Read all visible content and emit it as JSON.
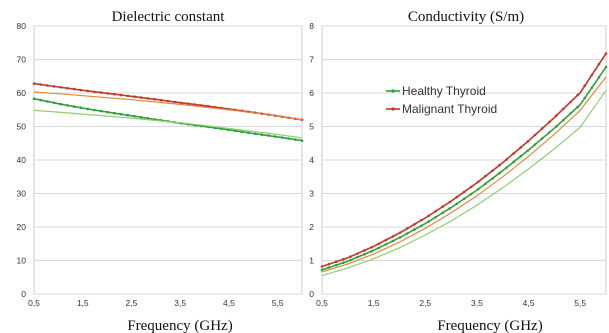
{
  "chart_data": [
    {
      "type": "line",
      "title": "Dielectric constant",
      "xlabel": "Frequency (GHz)",
      "ylabel": "",
      "xlim": [
        0.5,
        6.0
      ],
      "ylim": [
        0,
        80
      ],
      "x_ticks": [
        "0,5",
        "1,5",
        "2,5",
        "3,5",
        "4,5",
        "5,5"
      ],
      "y_ticks": [
        "0",
        "10",
        "20",
        "30",
        "40",
        "50",
        "60",
        "70",
        "80"
      ],
      "grid": "horizontal",
      "x": [
        0.5,
        1.0,
        1.5,
        2.0,
        2.5,
        3.0,
        3.5,
        4.0,
        4.5,
        5.0,
        5.5,
        6.0
      ],
      "series": [
        {
          "color": "#2e9e3f",
          "marker": "dot",
          "values": [
            58.3,
            56.8,
            55.5,
            54.3,
            53.2,
            52.1,
            51.0,
            50.0,
            49.0,
            47.9,
            46.9,
            45.8
          ]
        },
        {
          "color": "#8fcf70",
          "marker": "none",
          "values": [
            54.8,
            54.3,
            53.7,
            53.1,
            52.5,
            51.8,
            51.1,
            50.3,
            49.4,
            48.5,
            47.6,
            46.6
          ]
        },
        {
          "color": "#c0392b",
          "marker": "dot",
          "values": [
            62.8,
            61.8,
            60.8,
            59.9,
            59.0,
            58.1,
            57.1,
            56.2,
            55.2,
            54.2,
            53.1,
            52.0
          ]
        },
        {
          "color": "#e08a3c",
          "marker": "none",
          "values": [
            60.3,
            59.8,
            59.2,
            58.6,
            58.0,
            57.3,
            56.6,
            55.8,
            55.0,
            54.1,
            53.1,
            52.0
          ]
        }
      ]
    },
    {
      "type": "line",
      "title": "Conductivity (S/m)",
      "xlabel": "Frequency (GHz)",
      "ylabel": "",
      "xlim": [
        0.5,
        6.0
      ],
      "ylim": [
        0,
        8
      ],
      "x_ticks": [
        "0,5",
        "1,5",
        "2,5",
        "3,5",
        "4,5",
        "5,5"
      ],
      "y_ticks": [
        "0",
        "1",
        "2",
        "3",
        "4",
        "5",
        "6",
        "7",
        "8"
      ],
      "grid": "horizontal",
      "legend": {
        "position": "top-left",
        "entries": [
          "Healthy Thyroid",
          "Malignant Thyroid"
        ]
      },
      "x": [
        0.5,
        1.0,
        1.5,
        2.0,
        2.5,
        3.0,
        3.5,
        4.0,
        4.5,
        5.0,
        5.5,
        6.0
      ],
      "series": [
        {
          "name": "Healthy Thyroid",
          "color": "#2e9e3f",
          "marker": "dot",
          "values": [
            0.72,
            0.98,
            1.3,
            1.68,
            2.1,
            2.58,
            3.1,
            3.68,
            4.3,
            4.95,
            5.65,
            6.78
          ]
        },
        {
          "color": "#8fcf70",
          "marker": "none",
          "values": [
            0.55,
            0.78,
            1.05,
            1.38,
            1.76,
            2.18,
            2.65,
            3.17,
            3.73,
            4.33,
            4.98,
            6.08
          ]
        },
        {
          "name": "Malignant Thyroid",
          "color": "#c0392b",
          "marker": "dot",
          "values": [
            0.82,
            1.08,
            1.42,
            1.82,
            2.27,
            2.77,
            3.32,
            3.92,
            4.57,
            5.27,
            6.01,
            7.18
          ]
        },
        {
          "color": "#e08a3c",
          "marker": "none",
          "values": [
            0.66,
            0.9,
            1.19,
            1.55,
            1.96,
            2.42,
            2.93,
            3.5,
            4.11,
            4.77,
            5.48,
            6.48
          ]
        }
      ]
    }
  ]
}
